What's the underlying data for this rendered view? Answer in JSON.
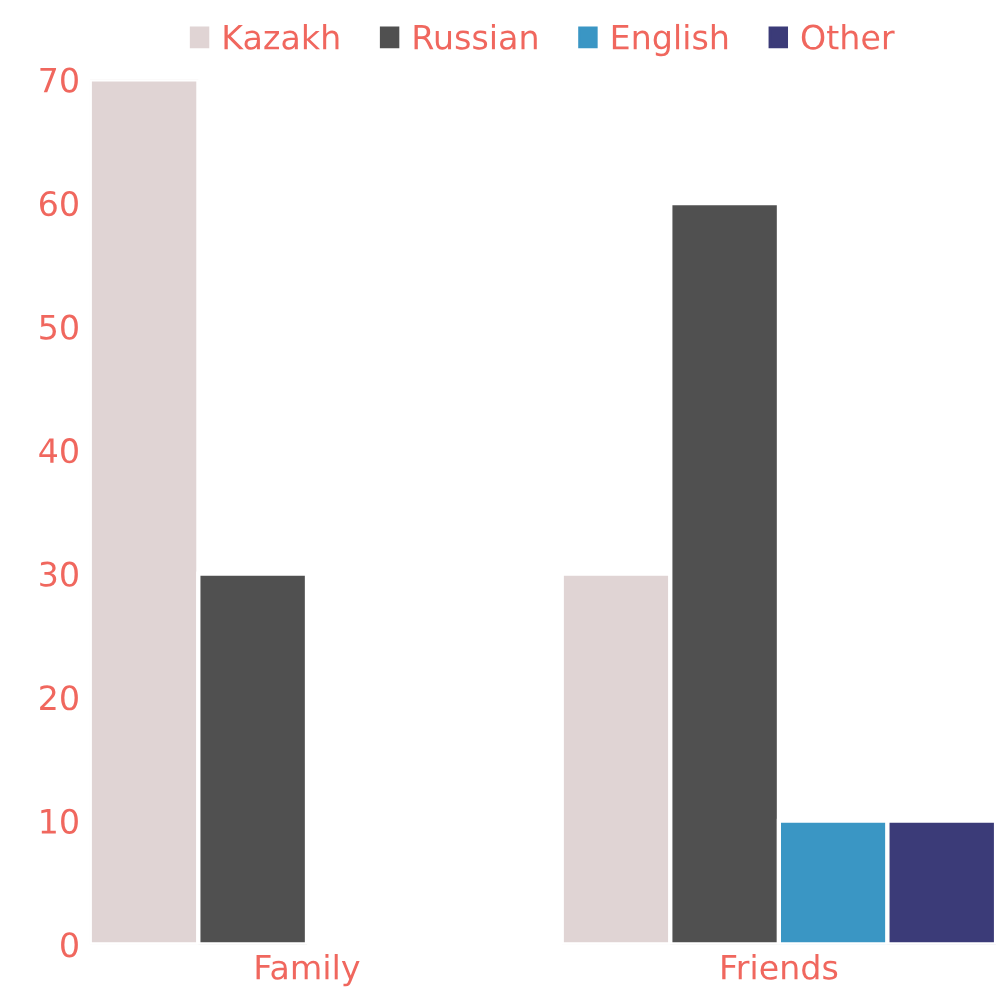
{
  "chart_data": {
    "type": "bar",
    "categories": [
      "Family",
      "Friends"
    ],
    "series": [
      {
        "name": "Kazakh",
        "color": "#e0d4d4",
        "values": [
          70,
          30
        ]
      },
      {
        "name": "Russian",
        "color": "#505050",
        "values": [
          30,
          60
        ]
      },
      {
        "name": "English",
        "color": "#3a96c4",
        "values": [
          null,
          10
        ]
      },
      {
        "name": "Other",
        "color": "#3b3b78",
        "values": [
          null,
          10
        ]
      }
    ],
    "ylim": [
      0,
      70
    ],
    "yticks": [
      0,
      10,
      20,
      30,
      40,
      50,
      60,
      70
    ],
    "grid": false,
    "legend": "top"
  }
}
